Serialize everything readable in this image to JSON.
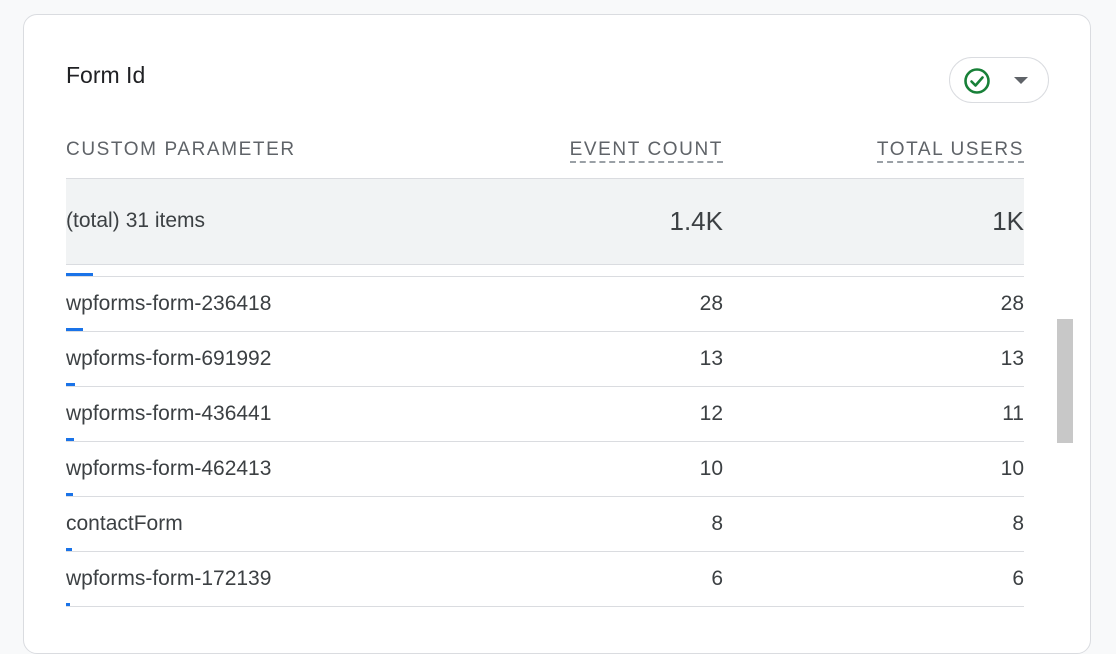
{
  "card": {
    "title": "Form Id",
    "status_chip": {
      "icon": "check-circle-icon",
      "icon_color": "#188038",
      "dropdown_icon": "caret-down-icon"
    }
  },
  "table": {
    "columns": {
      "dimension": "CUSTOM PARAMETER",
      "event_count": "EVENT COUNT",
      "total_users": "TOTAL USERS"
    },
    "total": {
      "label_prefix": "(total)",
      "label_count": "31 items",
      "event_count": "1.4K",
      "total_users": "1K"
    },
    "bar_color": "#1a73e8",
    "first_bar_fraction": 0.028,
    "rows": [
      {
        "name": "wpforms-form-236418",
        "event_count": "28",
        "total_users": "28",
        "bar_fraction": 0.018
      },
      {
        "name": "wpforms-form-691992",
        "event_count": "13",
        "total_users": "13",
        "bar_fraction": 0.009
      },
      {
        "name": "wpforms-form-436441",
        "event_count": "12",
        "total_users": "11",
        "bar_fraction": 0.008
      },
      {
        "name": "wpforms-form-462413",
        "event_count": "10",
        "total_users": "10",
        "bar_fraction": 0.007
      },
      {
        "name": "contactForm",
        "event_count": "8",
        "total_users": "8",
        "bar_fraction": 0.006
      },
      {
        "name": "wpforms-form-172139",
        "event_count": "6",
        "total_users": "6",
        "bar_fraction": 0.004
      }
    ]
  }
}
